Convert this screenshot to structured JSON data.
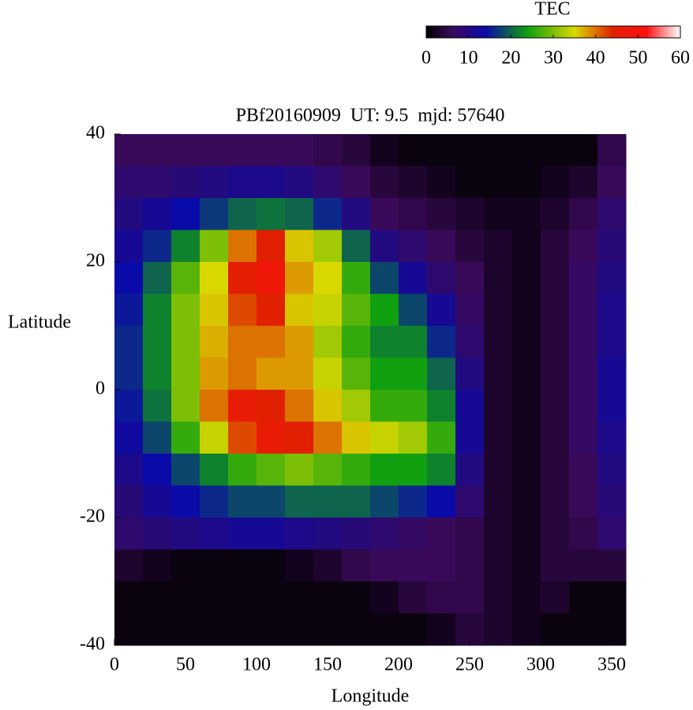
{
  "chart_data": {
    "type": "heatmap",
    "title": "PBf20160909  UT: 9.5  mjd: 57640",
    "x_label": "Longitude",
    "y_label": "Latitude",
    "xlim": [
      0,
      360
    ],
    "xticks": [
      0,
      50,
      100,
      150,
      200,
      250,
      300,
      350
    ],
    "ylim": [
      -40,
      40
    ],
    "yticks": [
      -40,
      -20,
      0,
      20,
      40
    ],
    "colorbar_label": "TEC",
    "clim": [
      0,
      60
    ],
    "cticks": [
      0,
      10,
      20,
      30,
      40,
      50,
      60
    ],
    "colorscale": [
      {
        "value": 0,
        "color": "#000000"
      },
      {
        "value": 6,
        "color": "#3a0a5a"
      },
      {
        "value": 14,
        "color": "#0a0aa8"
      },
      {
        "value": 24,
        "color": "#10a010"
      },
      {
        "value": 35,
        "color": "#d8d800"
      },
      {
        "value": 44,
        "color": "#e02000"
      },
      {
        "value": 52,
        "color": "#ff1010"
      },
      {
        "value": 60,
        "color": "#ffffff"
      }
    ],
    "x": [
      10,
      30,
      50,
      70,
      90,
      110,
      130,
      150,
      170,
      190,
      210,
      230,
      250,
      270,
      290,
      310,
      330,
      350
    ],
    "y": [
      37.5,
      32.5,
      27.5,
      22.5,
      17.5,
      12.5,
      7.5,
      2.5,
      -2.5,
      -7.5,
      -12.5,
      -17.5,
      -22.5,
      -27.5,
      -32.5,
      -37.5
    ],
    "z": [
      [
        6,
        6,
        6,
        6,
        6,
        6,
        6,
        5,
        4,
        2,
        1,
        1,
        1,
        1,
        1,
        1,
        1,
        5
      ],
      [
        8,
        8,
        9,
        10,
        11,
        11,
        10,
        8,
        6,
        4,
        3,
        2,
        1,
        1,
        1,
        2,
        3,
        6
      ],
      [
        10,
        12,
        14,
        17,
        20,
        21,
        20,
        16,
        10,
        6,
        5,
        4,
        3,
        2,
        2,
        3,
        5,
        8
      ],
      [
        12,
        16,
        22,
        30,
        40,
        44,
        36,
        32,
        20,
        10,
        8,
        6,
        4,
        3,
        2,
        4,
        6,
        9
      ],
      [
        14,
        20,
        28,
        35,
        45,
        48,
        38,
        35,
        26,
        18,
        12,
        8,
        6,
        3,
        2,
        4,
        7,
        10
      ],
      [
        15,
        22,
        30,
        36,
        42,
        44,
        36,
        34,
        28,
        24,
        18,
        12,
        7,
        3,
        2,
        4,
        7,
        11
      ],
      [
        16,
        22,
        30,
        37,
        40,
        40,
        38,
        32,
        26,
        22,
        22,
        16,
        8,
        3,
        2,
        4,
        7,
        11
      ],
      [
        16,
        22,
        30,
        38,
        40,
        38,
        38,
        34,
        28,
        24,
        24,
        20,
        10,
        3,
        2,
        4,
        7,
        12
      ],
      [
        15,
        21,
        30,
        40,
        46,
        44,
        40,
        36,
        32,
        26,
        26,
        22,
        12,
        3,
        2,
        4,
        7,
        12
      ],
      [
        13,
        18,
        26,
        34,
        42,
        46,
        44,
        40,
        36,
        34,
        32,
        26,
        12,
        3,
        2,
        4,
        7,
        11
      ],
      [
        11,
        14,
        18,
        22,
        26,
        28,
        30,
        28,
        26,
        24,
        24,
        22,
        10,
        3,
        2,
        4,
        6,
        10
      ],
      [
        9,
        12,
        14,
        16,
        18,
        18,
        20,
        20,
        20,
        18,
        16,
        14,
        8,
        3,
        2,
        4,
        6,
        9
      ],
      [
        8,
        9,
        10,
        11,
        12,
        12,
        11,
        10,
        9,
        8,
        7,
        6,
        5,
        3,
        2,
        4,
        5,
        8
      ],
      [
        3,
        2,
        1,
        1,
        1,
        1,
        2,
        3,
        5,
        6,
        6,
        6,
        5,
        3,
        2,
        4,
        4,
        4
      ],
      [
        1,
        1,
        1,
        1,
        1,
        1,
        1,
        1,
        1,
        2,
        4,
        5,
        5,
        3,
        2,
        3,
        1,
        1
      ],
      [
        1,
        1,
        1,
        1,
        1,
        1,
        1,
        1,
        1,
        1,
        1,
        2,
        4,
        3,
        2,
        1,
        1,
        1
      ]
    ]
  }
}
